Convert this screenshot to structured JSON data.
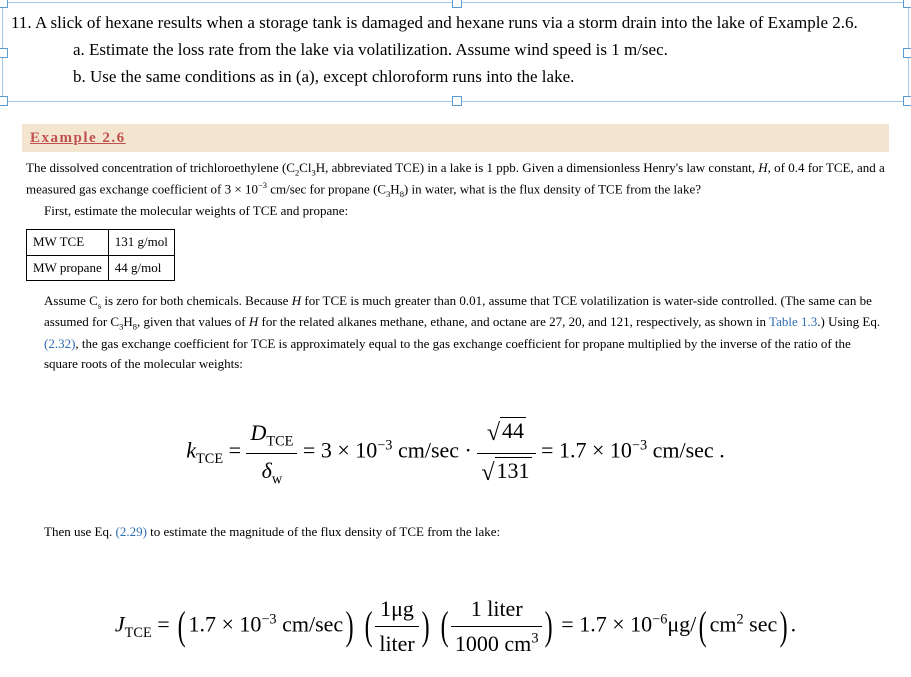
{
  "question": {
    "number": "11.",
    "main": "A slick of hexane results when a storage tank is damaged and hexane runs via a storm drain into the lake of Example 2.6.",
    "sub_a_letter": "a.",
    "sub_a_text": "Estimate the loss rate from the lake via volatilization. Assume wind speed is 1 m/sec.",
    "sub_b_letter": "b.",
    "sub_b_text": "Use the same conditions as in (a), except chloroform runs into the lake."
  },
  "example": {
    "title": "Example 2.6",
    "intro_1": "The dissolved concentration of trichloroethylene (C",
    "intro_sub1": "2",
    "intro_2": "Cl",
    "intro_sub2": "3",
    "intro_3": "H, abbreviated TCE) in a lake is 1 ppb. Given a dimensionless Henry's law constant, ",
    "intro_H": "H",
    "intro_4": ", of 0.4 for TCE, and a measured gas exchange coefficient of 3 × 10",
    "intro_sup1": "−3",
    "intro_5": " cm/sec for propane (C",
    "intro_sub3": "3",
    "intro_6": "H",
    "intro_sub4": "8",
    "intro_7": ") in water, what is the flux density of TCE from the lake?",
    "first_estimate": "First, estimate the molecular weights of TCE and propane:",
    "mw_tce_label": "MW TCE",
    "mw_tce_value": "131 g/mol",
    "mw_propane_label": "MW propane",
    "mw_propane_value": "44 g/mol",
    "assume_1": "Assume C",
    "assume_sub1": "s",
    "assume_2": " is zero for both chemicals. Because ",
    "assume_H": "H",
    "assume_3": " for TCE is much greater than 0.01, assume that TCE volatilization is water-side controlled. (The same can be assumed for C",
    "assume_sub2": "3",
    "assume_4": "H",
    "assume_sub3": "8",
    "assume_5": ", given that values of ",
    "assume_H2": "H",
    "assume_6": " for the related alkanes methane, ethane, and octane are 27, 20, and 121, respectively, as shown in ",
    "table_link": "Table 1.3",
    "assume_7": ".) Using Eq. ",
    "eq_link1": "(2.32)",
    "assume_8": ", the gas exchange coefficient for TCE is approximately equal to the gas exchange coefficient for propane multiplied by the inverse of the ratio of the square roots of the molecular weights:",
    "then_use_1": "Then use Eq. ",
    "eq_link2": "(2.29)",
    "then_use_2": " to estimate the magnitude of the flux density of TCE from the lake:"
  },
  "formula1": {
    "k_sym": "k",
    "sub_tce": "TCE",
    "d_sym": "D",
    "delta_sym": "δ",
    "sub_w": "w",
    "coef": "3 × 10",
    "coef_exp": "−3",
    "unit": " cm/sec",
    "sqrt_num": "44",
    "sqrt_den": "131",
    "result_coef": "1.7 × 10",
    "result_exp": "−3",
    "result_unit": " cm/sec"
  },
  "formula2": {
    "j_sym": "J",
    "sub_tce": "TCE",
    "coef": "1.7 × 10",
    "coef_exp": "−3",
    "unit": " cm/sec",
    "frac1_num": "1μg",
    "frac1_den": "liter",
    "frac2_num": "1 liter",
    "frac2_den_val": "1000 cm",
    "frac2_den_exp": "3",
    "result_coef": "1.7 × 10",
    "result_exp": "−6",
    "result_unit1": "μg/",
    "result_unit2": "cm",
    "result_unit2_exp": "2",
    "result_unit3": " sec"
  }
}
